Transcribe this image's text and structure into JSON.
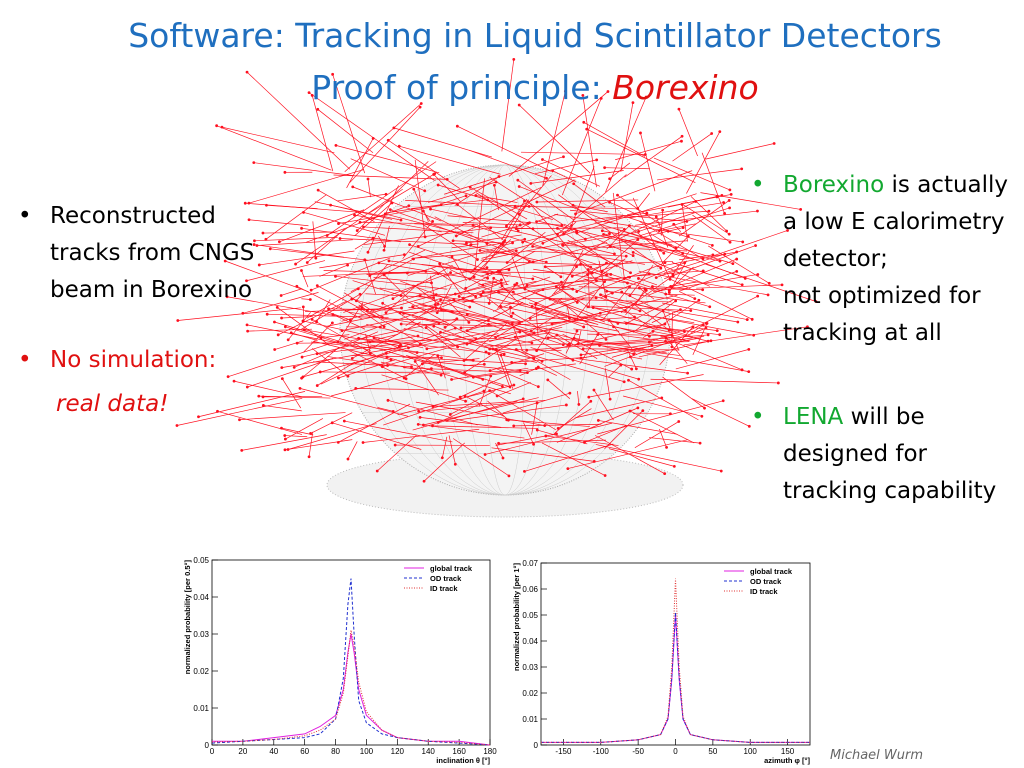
{
  "title": "Software: Tracking in Liquid Scintillator Detectors",
  "subtitle": {
    "text": "Proof of principle: ",
    "highlight": "Borexino"
  },
  "left_bullets": [
    {
      "text": "Reconstructed tracks from CNGS beam in Borexino"
    },
    {
      "text": "No simulation:",
      "emphasis": "real data!"
    }
  ],
  "right_bullets": [
    {
      "highlight": "Borexino",
      "text": " is actually a low E calorimetry detector;",
      "text2": "not optimized for tracking at all"
    },
    {
      "highlight": "LENA",
      "text": " will be designed for tracking capability"
    }
  ],
  "author": "Michael Wurm",
  "chart_data": [
    {
      "type": "line",
      "xlabel": "inclination θ [°]",
      "ylabel": "normalized probability [per 0.5°]",
      "x": [
        0,
        20,
        40,
        60,
        70,
        80,
        85,
        88,
        90,
        92,
        95,
        100,
        110,
        120,
        140,
        160,
        180
      ],
      "series": [
        {
          "name": "global track",
          "color": "#e020e0",
          "style": "solid",
          "values": [
            0.001,
            0.001,
            0.002,
            0.003,
            0.005,
            0.008,
            0.015,
            0.025,
            0.03,
            0.025,
            0.015,
            0.008,
            0.004,
            0.002,
            0.001,
            0.001,
            0
          ]
        },
        {
          "name": "OD track",
          "color": "#2030d0",
          "style": "dashed",
          "values": [
            0.0005,
            0.001,
            0.0015,
            0.002,
            0.003,
            0.007,
            0.018,
            0.038,
            0.045,
            0.03,
            0.012,
            0.006,
            0.003,
            0.002,
            0.001,
            0.0005,
            0
          ]
        },
        {
          "name": "ID track",
          "color": "#e03030",
          "style": "dotted",
          "values": [
            0.0008,
            0.001,
            0.0015,
            0.0025,
            0.004,
            0.007,
            0.014,
            0.024,
            0.031,
            0.027,
            0.017,
            0.009,
            0.004,
            0.002,
            0.001,
            0.0007,
            0
          ]
        }
      ],
      "xlim": [
        0,
        180
      ],
      "xticks": [
        0,
        20,
        40,
        60,
        80,
        100,
        120,
        140,
        160,
        180
      ],
      "ylim": [
        0,
        0.05
      ],
      "yticks": [
        0,
        0.01,
        0.02,
        0.03,
        0.04,
        0.05
      ],
      "legend": "top-right"
    },
    {
      "type": "line",
      "xlabel": "azimuth φ [°]",
      "ylabel": "normalized probability [per 1°]",
      "x": [
        -180,
        -150,
        -100,
        -50,
        -20,
        -10,
        -5,
        0,
        5,
        10,
        20,
        50,
        100,
        150,
        180
      ],
      "series": [
        {
          "name": "global track",
          "color": "#e020e0",
          "style": "solid",
          "values": [
            0.001,
            0.001,
            0.001,
            0.002,
            0.004,
            0.01,
            0.025,
            0.05,
            0.025,
            0.01,
            0.004,
            0.002,
            0.001,
            0.001,
            0.001
          ]
        },
        {
          "name": "OD track",
          "color": "#2030d0",
          "style": "dashed",
          "values": [
            0.001,
            0.001,
            0.001,
            0.002,
            0.004,
            0.01,
            0.026,
            0.051,
            0.026,
            0.01,
            0.004,
            0.002,
            0.001,
            0.001,
            0.001
          ]
        },
        {
          "name": "ID track",
          "color": "#e03030",
          "style": "dotted",
          "values": [
            0.001,
            0.001,
            0.001,
            0.002,
            0.004,
            0.011,
            0.03,
            0.064,
            0.03,
            0.011,
            0.004,
            0.002,
            0.001,
            0.001,
            0.001
          ]
        }
      ],
      "xlim": [
        -180,
        180
      ],
      "xticks": [
        -150,
        -100,
        -50,
        0,
        50,
        100,
        150
      ],
      "ylim": [
        0,
        0.07
      ],
      "yticks": [
        0,
        0.01,
        0.02,
        0.03,
        0.04,
        0.05,
        0.06,
        0.07
      ],
      "legend": "top-right"
    }
  ]
}
